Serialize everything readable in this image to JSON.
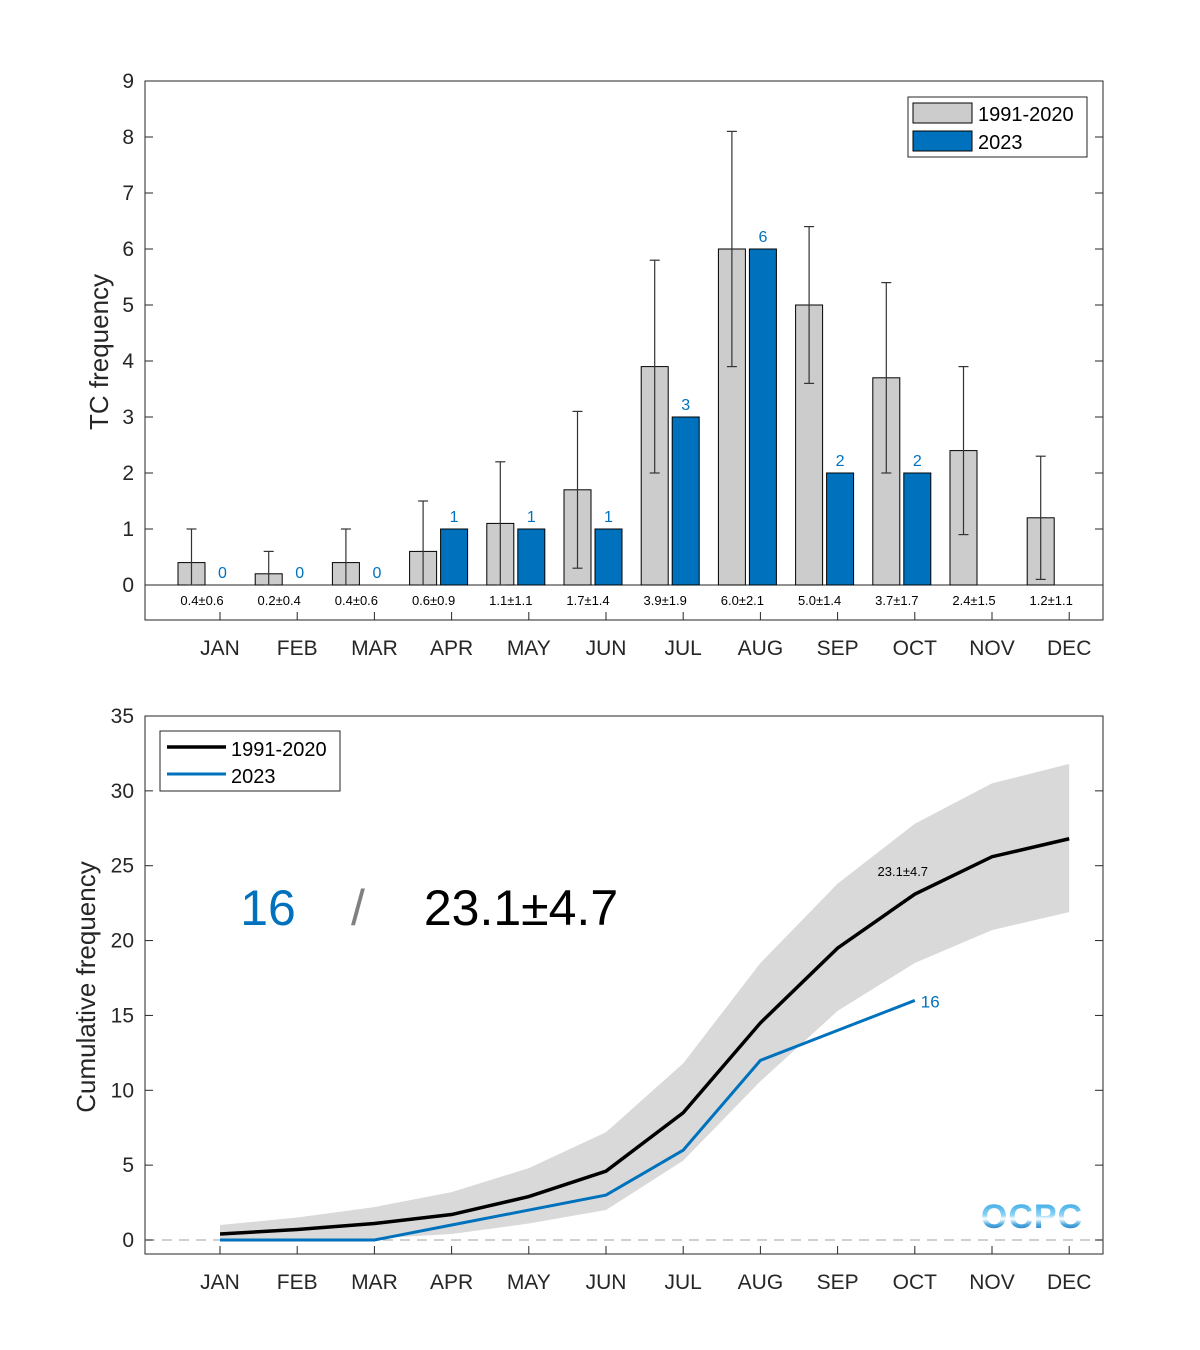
{
  "chart_data": [
    {
      "type": "bar",
      "title": "",
      "xlabel": "",
      "ylabel": "TC frequency",
      "ylim": [
        0,
        9
      ],
      "yticks": [
        0,
        1,
        2,
        3,
        4,
        5,
        6,
        7,
        8,
        9
      ],
      "categories": [
        "JAN",
        "FEB",
        "MAR",
        "APR",
        "MAY",
        "JUN",
        "JUL",
        "AUG",
        "SEP",
        "OCT",
        "NOV",
        "DEC"
      ],
      "legend": {
        "position": "top-right",
        "entries": [
          "1991-2020",
          "2023"
        ]
      },
      "series": [
        {
          "name": "1991-2020",
          "color": "#cccccc",
          "values": [
            0.4,
            0.2,
            0.4,
            0.6,
            1.1,
            1.7,
            3.9,
            6.0,
            5.0,
            3.7,
            2.4,
            1.2
          ],
          "error": [
            0.6,
            0.4,
            0.6,
            0.9,
            1.1,
            1.4,
            1.9,
            2.1,
            1.4,
            1.7,
            1.5,
            1.1
          ]
        },
        {
          "name": "2023",
          "color": "#0072bd",
          "values": [
            0,
            0,
            0,
            1,
            1,
            1,
            3,
            6,
            2,
            2,
            null,
            null
          ]
        }
      ],
      "climatology_labels": [
        "0.4±0.6",
        "0.2±0.4",
        "0.4±0.6",
        "0.6±0.9",
        "1.1±1.1",
        "1.7±1.4",
        "3.9±1.9",
        "6.0±2.1",
        "5.0±1.4",
        "3.7±1.7",
        "2.4±1.5",
        "1.2±1.1"
      ],
      "value_labels_2023": [
        "0",
        "0",
        "0",
        "1",
        "1",
        "1",
        "3",
        "6",
        "2",
        "2",
        null,
        null
      ]
    },
    {
      "type": "line",
      "title": "",
      "xlabel": "",
      "ylabel": "Cumulative frequency",
      "ylim": [
        0,
        35
      ],
      "yticks": [
        0,
        5,
        10,
        15,
        20,
        25,
        30,
        35
      ],
      "categories": [
        "JAN",
        "FEB",
        "MAR",
        "APR",
        "MAY",
        "JUN",
        "JUL",
        "AUG",
        "SEP",
        "OCT",
        "NOV",
        "DEC"
      ],
      "legend": {
        "position": "top-left",
        "entries": [
          "1991-2020",
          "2023"
        ]
      },
      "series": [
        {
          "name": "1991-2020",
          "color": "#000000",
          "values": [
            0.4,
            0.7,
            1.1,
            1.7,
            2.9,
            4.6,
            8.5,
            14.5,
            19.5,
            23.1,
            25.6,
            26.8
          ],
          "band_upper": [
            1.0,
            1.5,
            2.2,
            3.2,
            4.8,
            7.2,
            11.8,
            18.5,
            23.8,
            27.8,
            30.5,
            31.8
          ],
          "band_lower": [
            0.0,
            0.0,
            0.1,
            0.4,
            1.1,
            2.0,
            5.3,
            10.6,
            15.3,
            18.5,
            20.7,
            21.9
          ]
        },
        {
          "name": "2023",
          "color": "#0072bd",
          "values": [
            0,
            0,
            0,
            1,
            2,
            3,
            6,
            12,
            14,
            16,
            null,
            null
          ]
        }
      ],
      "zero_line": "dashed",
      "annotations": {
        "climatology_oct_label": "23.1±4.7",
        "current_oct_label": "16",
        "summary_current": "16",
        "summary_separator": "/",
        "summary_climatology": "23.1±4.7"
      },
      "logo": "OCPC"
    }
  ]
}
